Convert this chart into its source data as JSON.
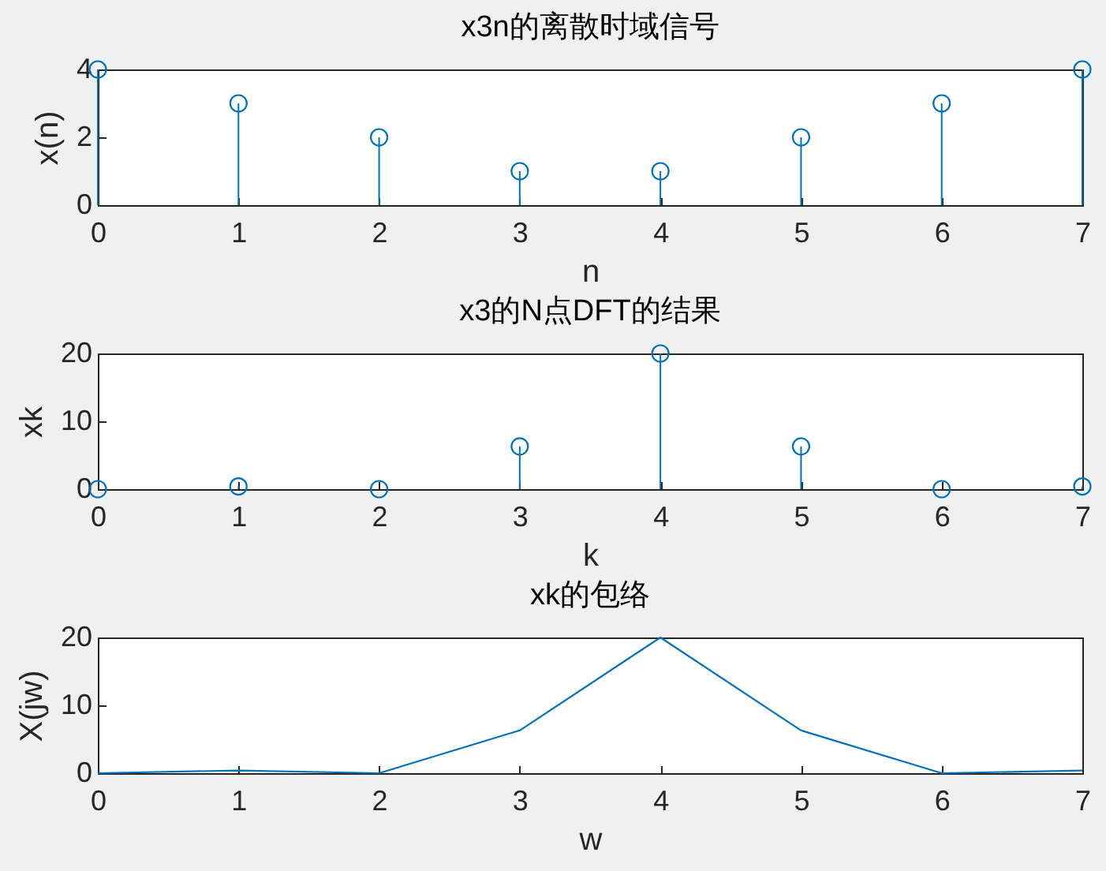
{
  "chart_data": [
    {
      "type": "lollipop",
      "title": "x3n的离散时域信号",
      "xlabel": "n",
      "ylabel": "x(n)",
      "x": [
        0,
        1,
        2,
        3,
        4,
        5,
        6,
        7
      ],
      "values": [
        4,
        3,
        2,
        1,
        1,
        2,
        3,
        4
      ],
      "color": "#0072bd",
      "marker": "circle",
      "xlim": [
        0,
        7
      ],
      "xticks": [
        0,
        1,
        2,
        3,
        4,
        5,
        6,
        7
      ],
      "ylim": [
        0,
        4
      ],
      "yticks": [
        0,
        2,
        4
      ]
    },
    {
      "type": "lollipop",
      "title": "x3的N点DFT的结果",
      "xlabel": "k",
      "ylabel": "xk",
      "x": [
        0,
        1,
        2,
        3,
        4,
        5,
        6,
        7
      ],
      "values": [
        0,
        0.4,
        0,
        6.3,
        20,
        6.3,
        0,
        0.4
      ],
      "color": "#0072bd",
      "marker": "circle",
      "xlim": [
        0,
        7
      ],
      "xticks": [
        0,
        1,
        2,
        3,
        4,
        5,
        6,
        7
      ],
      "ylim": [
        0,
        20
      ],
      "yticks": [
        0,
        10,
        20
      ]
    },
    {
      "type": "line",
      "title": "xk的包络",
      "xlabel": "w",
      "ylabel": "X(jw)",
      "x": [
        0,
        1,
        2,
        3,
        4,
        5,
        6,
        7
      ],
      "values": [
        0,
        0.4,
        0,
        6.3,
        20,
        6.3,
        0,
        0.4
      ],
      "color": "#0072bd",
      "xlim": [
        0,
        7
      ],
      "xticks": [
        0,
        1,
        2,
        3,
        4,
        5,
        6,
        7
      ],
      "ylim": [
        0,
        20
      ],
      "yticks": [
        0,
        10,
        20
      ]
    }
  ]
}
